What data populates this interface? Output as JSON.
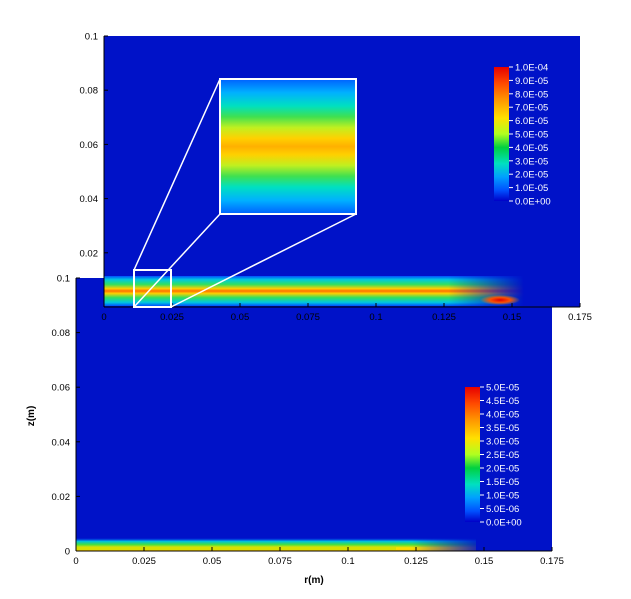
{
  "chart_data": [
    {
      "type": "heatmap",
      "title": "",
      "xlabel": "",
      "ylabel": "",
      "xlim": [
        0,
        0.175
      ],
      "ylim": [
        0,
        0.1
      ],
      "x_ticks": [
        "0",
        "0.025",
        "0.05",
        "0.075",
        "0.1",
        "0.125",
        "0.15",
        "0.175"
      ],
      "y_ticks": [
        "0",
        "0.02",
        "0.04",
        "0.06",
        "0.08",
        "0.1"
      ],
      "colorbar": {
        "min": 0,
        "max": 0.0001,
        "labels": [
          "1.0E-04",
          "9.0E-05",
          "8.0E-05",
          "7.0E-05",
          "6.0E-05",
          "5.0E-05",
          "4.0E-05",
          "3.0E-05",
          "2.0E-05",
          "1.0E-05",
          "0.0E+00"
        ],
        "placement": "top-right"
      },
      "field": {
        "layer_center_z": 0.006,
        "layer_half_width_z": 0.004,
        "peak_value": 9e-05,
        "front_r": 0.16,
        "hotspot_r": 0.148,
        "hotspot_value": 0.0001
      },
      "inset": {
        "region_r": [
          0.01,
          0.025
        ],
        "region_z": [
          0,
          0.0125
        ],
        "description_values_peak": 6.5e-05
      }
    },
    {
      "type": "heatmap",
      "title": "",
      "xlabel": "r(m)",
      "ylabel": "z(m)",
      "xlim": [
        0,
        0.175
      ],
      "ylim": [
        0,
        0.1
      ],
      "x_ticks": [
        "0",
        "0.025",
        "0.05",
        "0.075",
        "0.1",
        "0.125",
        "0.15",
        "0.175"
      ],
      "y_ticks": [
        "0",
        "0.02",
        "0.04",
        "0.06",
        "0.08",
        "0.1"
      ],
      "colorbar": {
        "min": 0,
        "max": 5e-05,
        "labels": [
          "5.0E-05",
          "4.5E-05",
          "4.0E-05",
          "3.5E-05",
          "3.0E-05",
          "2.5E-05",
          "2.0E-05",
          "1.5E-05",
          "1.0E-05",
          "5.0E-06",
          "0.0E+00"
        ],
        "placement": "right"
      },
      "field": {
        "layer_center_z": 0.001,
        "layer_half_width_z": 0.0015,
        "peak_value": 5e-05,
        "front_r": 0.145
      }
    }
  ]
}
